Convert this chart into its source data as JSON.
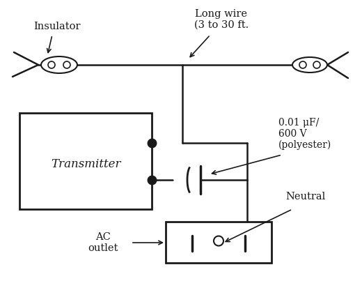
{
  "bg_color": "#ffffff",
  "line_color": "#1a1a1a",
  "labels": {
    "insulator": "Insulator",
    "long_wire": "Long wire\n(3 to 30 ft.",
    "transmitter": "Transmitter",
    "capacitor": "0.01 μF/\n600 V\n(polyester)",
    "neutral": "Neutral",
    "ac_outlet": "AC\noutlet"
  },
  "fig_width": 5.2,
  "fig_height": 4.03,
  "dpi": 100
}
